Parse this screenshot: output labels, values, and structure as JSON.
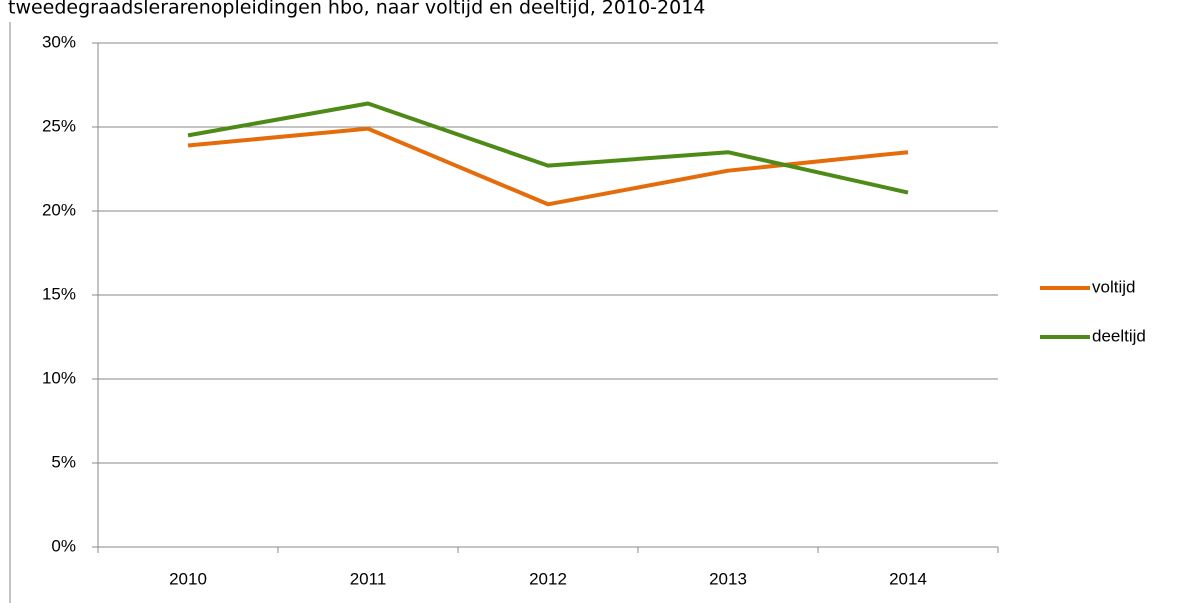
{
  "chart_data": {
    "type": "line",
    "title": "tweedegraadslerarenopleidingen hbo, naar voltijd en deeltijd, 2010-2014",
    "categories": [
      "2010",
      "2011",
      "2012",
      "2013",
      "2014"
    ],
    "series": [
      {
        "name": "voltijd",
        "color": "#e46c0a",
        "values": [
          23.9,
          24.9,
          20.4,
          22.4,
          23.5
        ]
      },
      {
        "name": "deeltijd",
        "color": "#4e8a18",
        "values": [
          24.5,
          26.4,
          22.7,
          23.5,
          21.1
        ]
      }
    ],
    "ylim": [
      0,
      30
    ],
    "yticks": [
      {
        "value": 0,
        "label": "0%"
      },
      {
        "value": 5,
        "label": "5%"
      },
      {
        "value": 10,
        "label": "10%"
      },
      {
        "value": 15,
        "label": "15%"
      },
      {
        "value": 20,
        "label": "20%"
      },
      {
        "value": 25,
        "label": "25%"
      },
      {
        "value": 30,
        "label": "30%"
      }
    ],
    "grid": true,
    "legend": "right"
  }
}
